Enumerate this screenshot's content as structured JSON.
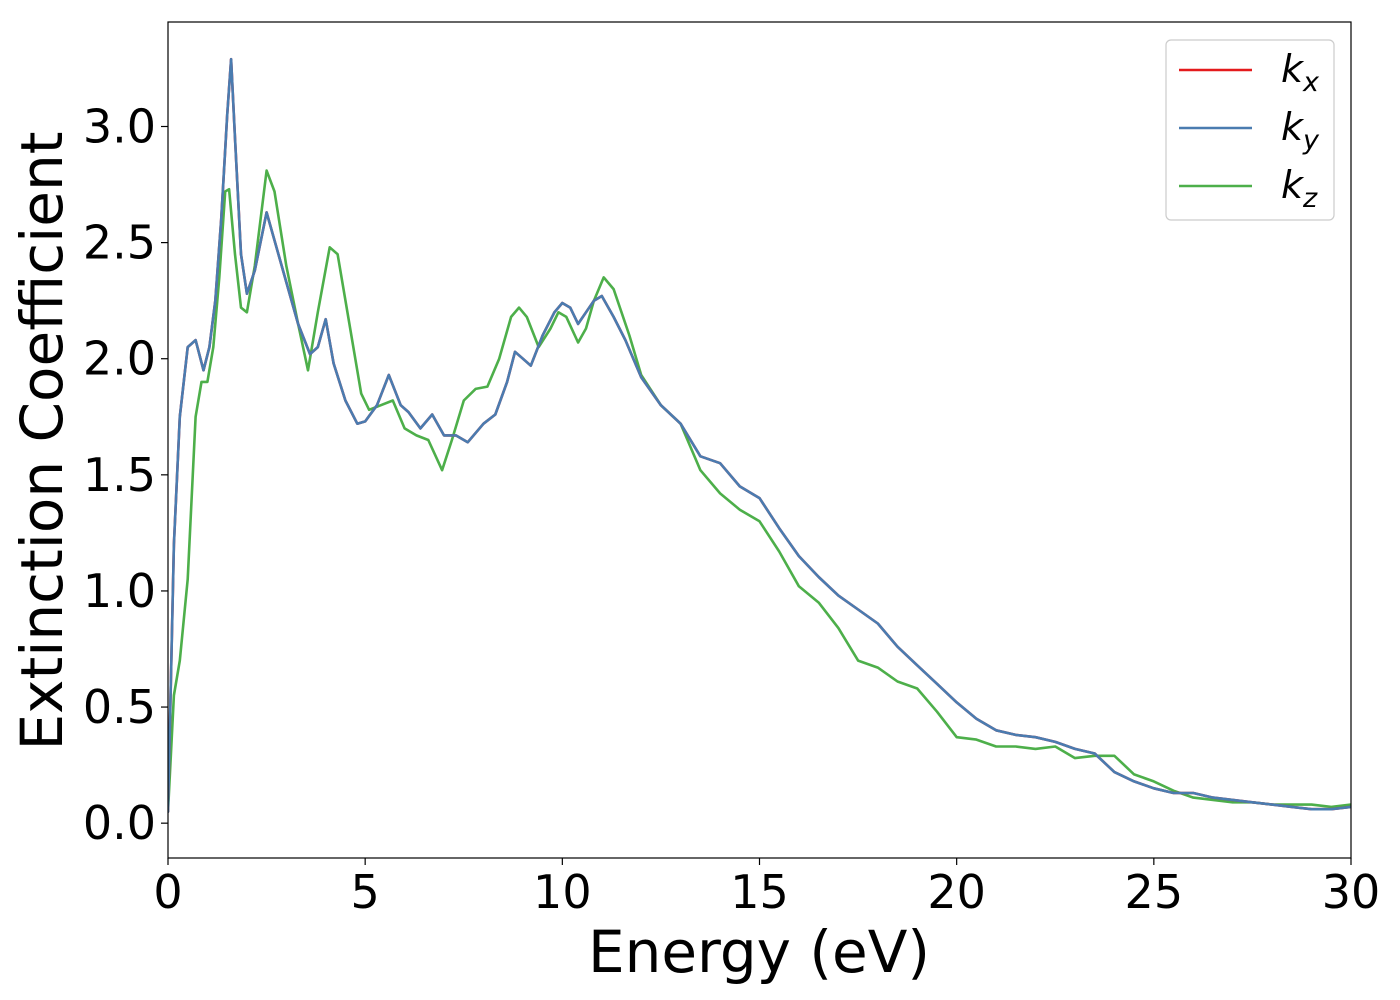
{
  "chart_data": {
    "type": "line",
    "xlabel": "Energy (eV)",
    "ylabel": "Extinction Coefficient",
    "xlim": [
      0,
      30
    ],
    "ylim": [
      -0.15,
      3.45
    ],
    "xticks": [
      0,
      5,
      10,
      15,
      20,
      25,
      30
    ],
    "xtick_labels": [
      "0",
      "5",
      "10",
      "15",
      "20",
      "25",
      "30"
    ],
    "yticks": [
      0.0,
      0.5,
      1.0,
      1.5,
      2.0,
      2.5,
      3.0
    ],
    "ytick_labels": [
      "0.0",
      "0.5",
      "1.0",
      "1.5",
      "2.0",
      "2.5",
      "3.0"
    ],
    "grid": false,
    "legend_position": "top-right",
    "series": [
      {
        "name": "k",
        "subscript": "x",
        "color": "#e41a1c",
        "x": [
          0,
          0.15,
          0.3,
          0.5,
          0.7,
          0.9,
          1.05,
          1.2,
          1.35,
          1.5,
          1.6,
          1.7,
          1.85,
          2.0,
          2.2,
          2.5,
          2.8,
          3.0,
          3.3,
          3.6,
          3.8,
          4.0,
          4.2,
          4.5,
          4.8,
          5.0,
          5.3,
          5.6,
          5.9,
          6.1,
          6.4,
          6.7,
          7.0,
          7.3,
          7.6,
          8.0,
          8.3,
          8.6,
          8.8,
          9.0,
          9.2,
          9.5,
          9.8,
          10.0,
          10.2,
          10.4,
          10.6,
          10.8,
          11.0,
          11.3,
          11.6,
          12.0,
          12.5,
          13.0,
          13.5,
          14.0,
          14.5,
          15.0,
          15.5,
          16.0,
          16.5,
          17.0,
          17.5,
          18.0,
          18.5,
          19.0,
          19.5,
          20.0,
          20.5,
          21.0,
          21.5,
          22.0,
          22.5,
          23.0,
          23.5,
          24.0,
          24.5,
          25.0,
          25.5,
          26.0,
          26.5,
          27.0,
          27.5,
          28.0,
          28.5,
          29.0,
          29.5,
          30.0
        ],
        "y": [
          0.05,
          1.2,
          1.75,
          2.05,
          2.08,
          1.95,
          2.05,
          2.25,
          2.6,
          3.05,
          3.29,
          2.95,
          2.45,
          2.28,
          2.38,
          2.63,
          2.45,
          2.33,
          2.15,
          2.02,
          2.05,
          2.17,
          1.98,
          1.82,
          1.72,
          1.73,
          1.8,
          1.93,
          1.8,
          1.77,
          1.7,
          1.76,
          1.67,
          1.67,
          1.64,
          1.72,
          1.76,
          1.9,
          2.03,
          2.0,
          1.97,
          2.1,
          2.2,
          2.24,
          2.22,
          2.15,
          2.2,
          2.25,
          2.27,
          2.18,
          2.08,
          1.92,
          1.8,
          1.72,
          1.58,
          1.55,
          1.45,
          1.4,
          1.27,
          1.15,
          1.06,
          0.98,
          0.92,
          0.86,
          0.76,
          0.68,
          0.6,
          0.52,
          0.45,
          0.4,
          0.38,
          0.37,
          0.35,
          0.32,
          0.3,
          0.22,
          0.18,
          0.15,
          0.13,
          0.13,
          0.11,
          0.1,
          0.09,
          0.08,
          0.07,
          0.06,
          0.06,
          0.07
        ]
      },
      {
        "name": "k",
        "subscript": "y",
        "color": "#4a7cb0",
        "x": [
          0,
          0.15,
          0.3,
          0.5,
          0.7,
          0.9,
          1.05,
          1.2,
          1.35,
          1.5,
          1.6,
          1.7,
          1.85,
          2.0,
          2.2,
          2.5,
          2.8,
          3.0,
          3.3,
          3.6,
          3.8,
          4.0,
          4.2,
          4.5,
          4.8,
          5.0,
          5.3,
          5.6,
          5.9,
          6.1,
          6.4,
          6.7,
          7.0,
          7.3,
          7.6,
          8.0,
          8.3,
          8.6,
          8.8,
          9.0,
          9.2,
          9.5,
          9.8,
          10.0,
          10.2,
          10.4,
          10.6,
          10.8,
          11.0,
          11.3,
          11.6,
          12.0,
          12.5,
          13.0,
          13.5,
          14.0,
          14.5,
          15.0,
          15.5,
          16.0,
          16.5,
          17.0,
          17.5,
          18.0,
          18.5,
          19.0,
          19.5,
          20.0,
          20.5,
          21.0,
          21.5,
          22.0,
          22.5,
          23.0,
          23.5,
          24.0,
          24.5,
          25.0,
          25.5,
          26.0,
          26.5,
          27.0,
          27.5,
          28.0,
          28.5,
          29.0,
          29.5,
          30.0
        ],
        "y": [
          0.05,
          1.2,
          1.75,
          2.05,
          2.08,
          1.95,
          2.05,
          2.25,
          2.6,
          3.05,
          3.29,
          2.95,
          2.45,
          2.28,
          2.38,
          2.63,
          2.45,
          2.33,
          2.15,
          2.02,
          2.05,
          2.17,
          1.98,
          1.82,
          1.72,
          1.73,
          1.8,
          1.93,
          1.8,
          1.77,
          1.7,
          1.76,
          1.67,
          1.67,
          1.64,
          1.72,
          1.76,
          1.9,
          2.03,
          2.0,
          1.97,
          2.1,
          2.2,
          2.24,
          2.22,
          2.15,
          2.2,
          2.25,
          2.27,
          2.18,
          2.08,
          1.92,
          1.8,
          1.72,
          1.58,
          1.55,
          1.45,
          1.4,
          1.27,
          1.15,
          1.06,
          0.98,
          0.92,
          0.86,
          0.76,
          0.68,
          0.6,
          0.52,
          0.45,
          0.4,
          0.38,
          0.37,
          0.35,
          0.32,
          0.3,
          0.22,
          0.18,
          0.15,
          0.13,
          0.13,
          0.11,
          0.1,
          0.09,
          0.08,
          0.07,
          0.06,
          0.06,
          0.07
        ]
      },
      {
        "name": "k",
        "subscript": "z",
        "color": "#4daf4a",
        "x": [
          0,
          0.15,
          0.3,
          0.5,
          0.7,
          0.85,
          1.0,
          1.15,
          1.3,
          1.45,
          1.55,
          1.7,
          1.85,
          2.0,
          2.2,
          2.5,
          2.7,
          3.0,
          3.3,
          3.55,
          3.8,
          4.1,
          4.3,
          4.6,
          4.9,
          5.1,
          5.4,
          5.7,
          6.0,
          6.3,
          6.6,
          6.95,
          7.2,
          7.5,
          7.8,
          8.1,
          8.4,
          8.7,
          8.9,
          9.1,
          9.4,
          9.7,
          9.9,
          10.1,
          10.4,
          10.6,
          10.8,
          11.05,
          11.3,
          11.7,
          12.0,
          12.5,
          13.0,
          13.5,
          14.0,
          14.5,
          15.0,
          15.5,
          16.0,
          16.5,
          17.0,
          17.5,
          18.0,
          18.5,
          19.0,
          19.5,
          20.0,
          20.5,
          21.0,
          21.5,
          22.0,
          22.5,
          23.0,
          23.5,
          24.0,
          24.5,
          25.0,
          25.5,
          26.0,
          26.5,
          27.0,
          27.5,
          28.0,
          28.5,
          29.0,
          29.5,
          30.0
        ],
        "y": [
          0.05,
          0.55,
          0.7,
          1.05,
          1.75,
          1.9,
          1.9,
          2.05,
          2.35,
          2.72,
          2.73,
          2.45,
          2.22,
          2.2,
          2.4,
          2.81,
          2.72,
          2.4,
          2.15,
          1.95,
          2.2,
          2.48,
          2.45,
          2.15,
          1.85,
          1.78,
          1.8,
          1.82,
          1.7,
          1.67,
          1.65,
          1.52,
          1.65,
          1.82,
          1.87,
          1.88,
          2.0,
          2.18,
          2.22,
          2.18,
          2.05,
          2.13,
          2.2,
          2.18,
          2.07,
          2.13,
          2.25,
          2.35,
          2.3,
          2.1,
          1.93,
          1.8,
          1.72,
          1.52,
          1.42,
          1.35,
          1.3,
          1.17,
          1.02,
          0.95,
          0.84,
          0.7,
          0.67,
          0.61,
          0.58,
          0.48,
          0.37,
          0.36,
          0.33,
          0.33,
          0.32,
          0.33,
          0.28,
          0.29,
          0.29,
          0.21,
          0.18,
          0.14,
          0.11,
          0.1,
          0.09,
          0.09,
          0.08,
          0.08,
          0.08,
          0.07,
          0.08
        ]
      }
    ]
  }
}
